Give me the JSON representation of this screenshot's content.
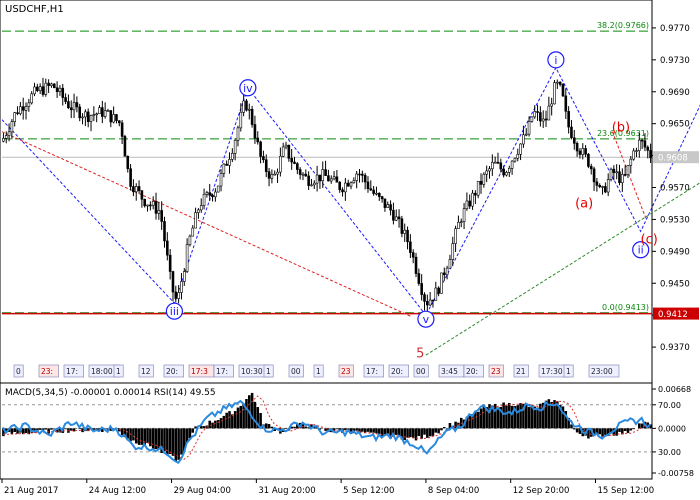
{
  "chart_data": [
    {
      "type": "candlestick",
      "title": "USDCHF,H1",
      "price_axis": {
        "min": 0.9325,
        "max": 0.9805,
        "ticks": [
          "0.9770",
          "0.9730",
          "0.9690",
          "0.9650",
          "0.9610",
          "0.9570",
          "0.9530",
          "0.9490",
          "0.9450",
          "0.9410",
          "0.9370"
        ],
        "tick_values": [
          0.977,
          0.973,
          0.969,
          0.965,
          0.961,
          0.957,
          0.953,
          0.949,
          0.945,
          0.941,
          0.937
        ]
      },
      "time_axis": {
        "labels": [
          "21 Aug 2017",
          "24 Aug 12:00",
          "29 Aug 04:00",
          "31 Aug 20:00",
          "5 Sep 12:00",
          "8 Sep 04:00",
          "12 Sep 20:00",
          "15 Sep 12:00"
        ],
        "label_index": [
          0,
          30,
          60,
          90,
          120,
          150,
          180,
          210
        ],
        "bars": 230
      },
      "price_path": [
        [
          0,
          0.9628
        ],
        [
          5,
          0.9665
        ],
        [
          12,
          0.969
        ],
        [
          18,
          0.9698
        ],
        [
          24,
          0.9672
        ],
        [
          30,
          0.966
        ],
        [
          36,
          0.9665
        ],
        [
          42,
          0.965
        ],
        [
          45,
          0.958
        ],
        [
          50,
          0.9555
        ],
        [
          56,
          0.954
        ],
        [
          60,
          0.9445
        ],
        [
          62,
          0.9425
        ],
        [
          66,
          0.95
        ],
        [
          70,
          0.955
        ],
        [
          76,
          0.957
        ],
        [
          82,
          0.9625
        ],
        [
          86,
          0.9678
        ],
        [
          88,
          0.966
        ],
        [
          92,
          0.96
        ],
        [
          96,
          0.958
        ],
        [
          100,
          0.962
        ],
        [
          104,
          0.9595
        ],
        [
          108,
          0.958
        ],
        [
          114,
          0.9585
        ],
        [
          120,
          0.957
        ],
        [
          126,
          0.959
        ],
        [
          132,
          0.956
        ],
        [
          138,
          0.954
        ],
        [
          144,
          0.95
        ],
        [
          148,
          0.945
        ],
        [
          150,
          0.9425
        ],
        [
          154,
          0.944
        ],
        [
          158,
          0.948
        ],
        [
          162,
          0.953
        ],
        [
          166,
          0.9555
        ],
        [
          170,
          0.958
        ],
        [
          174,
          0.96
        ],
        [
          178,
          0.959
        ],
        [
          182,
          0.9615
        ],
        [
          186,
          0.964
        ],
        [
          188,
          0.9665
        ],
        [
          192,
          0.965
        ],
        [
          196,
          0.97
        ],
        [
          198,
          0.969
        ],
        [
          200,
          0.965
        ],
        [
          204,
          0.962
        ],
        [
          208,
          0.96
        ],
        [
          212,
          0.956
        ],
        [
          216,
          0.959
        ],
        [
          220,
          0.9578
        ],
        [
          224,
          0.962
        ],
        [
          226,
          0.9628
        ],
        [
          230,
          0.9608
        ]
      ],
      "current_price": "0.9608",
      "horizontal_levels": [
        {
          "label": "38.2(0.9766)",
          "value": 0.9766,
          "color": "#0a8a0a",
          "style": "dashed"
        },
        {
          "label": "23.6(0.9631)",
          "value": 0.9631,
          "color": "#0a8a0a",
          "style": "dashed"
        },
        {
          "label": "0.0(0.9413)",
          "value": 0.9413,
          "color": "#0a8a0a",
          "style": "dashed"
        },
        {
          "label": "0.9412",
          "value": 0.9412,
          "color": "#cc0000",
          "style": "solid",
          "price_box": true
        },
        {
          "label": "",
          "value": 0.9608,
          "color": "#bbbbbb",
          "style": "solid"
        }
      ],
      "wave_labels": [
        {
          "text": "iii",
          "bar": 61,
          "price": 0.9415,
          "color": "#1a1aff",
          "circled": true
        },
        {
          "text": "iv",
          "bar": 87,
          "price": 0.9695,
          "color": "#1a1aff",
          "circled": true
        },
        {
          "text": "v",
          "bar": 150,
          "price": 0.9405,
          "color": "#1a1aff",
          "circled": true
        },
        {
          "text": "i",
          "bar": 196,
          "price": 0.973,
          "color": "#1a1aff",
          "circled": true
        },
        {
          "text": "ii",
          "bar": 226,
          "price": 0.9492,
          "color": "#1a1aff",
          "circled": true
        },
        {
          "text": "iii",
          "bar": 263,
          "price": 0.9808,
          "color": "#1a1aff",
          "circled": true
        },
        {
          "text": "(a)",
          "bar": 206,
          "price": 0.955,
          "color": "#e60000",
          "circled": false
        },
        {
          "text": "(b)",
          "bar": 219,
          "price": 0.9645,
          "color": "#e60000",
          "circled": false
        },
        {
          "text": "(c)",
          "bar": 229,
          "price": 0.9505,
          "color": "#e60000",
          "circled": false
        },
        {
          "text": "5",
          "bar": 148,
          "price": 0.9362,
          "color": "#cc3333",
          "circled": false
        }
      ],
      "trend_lines": [
        {
          "color": "#1a1aff",
          "style": "dashed",
          "points": [
            [
              0,
              0.9655
            ],
            [
              61,
              0.9425
            ],
            [
              87,
              0.9695
            ],
            [
              150,
              0.941
            ],
            [
              196,
              0.972
            ],
            [
              226,
              0.9515
            ],
            [
              265,
              0.9808
            ],
            [
              300,
              0.9725
            ]
          ]
        },
        {
          "color": "#dd2222",
          "style": "dashed",
          "points": [
            [
              0,
              0.964
            ],
            [
              145,
              0.9408
            ]
          ]
        },
        {
          "color": "#dd2222",
          "style": "dashed",
          "points": [
            [
              216,
              0.964
            ],
            [
              228,
              0.953
            ]
          ]
        },
        {
          "color": "#2a8a2a",
          "style": "dashed",
          "points": [
            [
              150,
              0.936
            ],
            [
              296,
              0.9685
            ]
          ]
        }
      ],
      "time_markers": [
        "0",
        "23:",
        "17:",
        "18:00",
        "1",
        "12",
        "20:",
        "17:3",
        "17:",
        "10:30",
        "1",
        "00",
        "1",
        "23",
        "17:",
        "20:",
        "00",
        "3:45",
        "20:",
        "23",
        "21",
        "17:30",
        "1",
        "23:00"
      ]
    },
    {
      "type": "histogram+line",
      "title": "MACD(5,34,5) -0.00001 0.00014 RSI(14) 49.55",
      "right_axis": [
        "0.00668",
        "70.00",
        "0.0000",
        "30.00",
        "-0.00758"
      ],
      "right_axis_values": [
        0.00668,
        70,
        0,
        30,
        -0.00758
      ],
      "macd_histogram": [
        [
          0,
          -0.001
        ],
        [
          20,
          -0.0004
        ],
        [
          40,
          -0.0002
        ],
        [
          45,
          -0.002
        ],
        [
          52,
          -0.003
        ],
        [
          58,
          -0.0045
        ],
        [
          62,
          -0.0055
        ],
        [
          68,
          0.0
        ],
        [
          74,
          0.0012
        ],
        [
          82,
          0.003
        ],
        [
          88,
          0.006
        ],
        [
          92,
          0.001
        ],
        [
          98,
          -0.0006
        ],
        [
          106,
          0.0008
        ],
        [
          114,
          -0.0004
        ],
        [
          122,
          -0.0005
        ],
        [
          130,
          -0.001
        ],
        [
          138,
          -0.0014
        ],
        [
          146,
          -0.0018
        ],
        [
          152,
          -0.001
        ],
        [
          158,
          0.0006
        ],
        [
          164,
          0.0018
        ],
        [
          170,
          0.0036
        ],
        [
          176,
          0.004
        ],
        [
          182,
          0.0042
        ],
        [
          188,
          0.0035
        ],
        [
          194,
          0.0048
        ],
        [
          198,
          0.004
        ],
        [
          202,
          -0.0005
        ],
        [
          208,
          -0.0015
        ],
        [
          214,
          -0.001
        ],
        [
          220,
          -0.0008
        ],
        [
          226,
          0.001
        ],
        [
          230,
          0.0005
        ]
      ],
      "rsi": [
        [
          0,
          48
        ],
        [
          8,
          52
        ],
        [
          16,
          44
        ],
        [
          24,
          55
        ],
        [
          32,
          48
        ],
        [
          40,
          50
        ],
        [
          46,
          35
        ],
        [
          52,
          34
        ],
        [
          58,
          30
        ],
        [
          62,
          22
        ],
        [
          66,
          40
        ],
        [
          72,
          58
        ],
        [
          78,
          66
        ],
        [
          84,
          72
        ],
        [
          88,
          62
        ],
        [
          92,
          50
        ],
        [
          98,
          48
        ],
        [
          106,
          55
        ],
        [
          114,
          46
        ],
        [
          122,
          47
        ],
        [
          130,
          42
        ],
        [
          138,
          44
        ],
        [
          146,
          36
        ],
        [
          150,
          28
        ],
        [
          156,
          45
        ],
        [
          162,
          52
        ],
        [
          168,
          68
        ],
        [
          174,
          66
        ],
        [
          180,
          63
        ],
        [
          186,
          70
        ],
        [
          190,
          68
        ],
        [
          196,
          72
        ],
        [
          200,
          57
        ],
        [
          206,
          48
        ],
        [
          212,
          44
        ],
        [
          218,
          52
        ],
        [
          222,
          56
        ],
        [
          226,
          57
        ],
        [
          230,
          50
        ]
      ]
    }
  ]
}
